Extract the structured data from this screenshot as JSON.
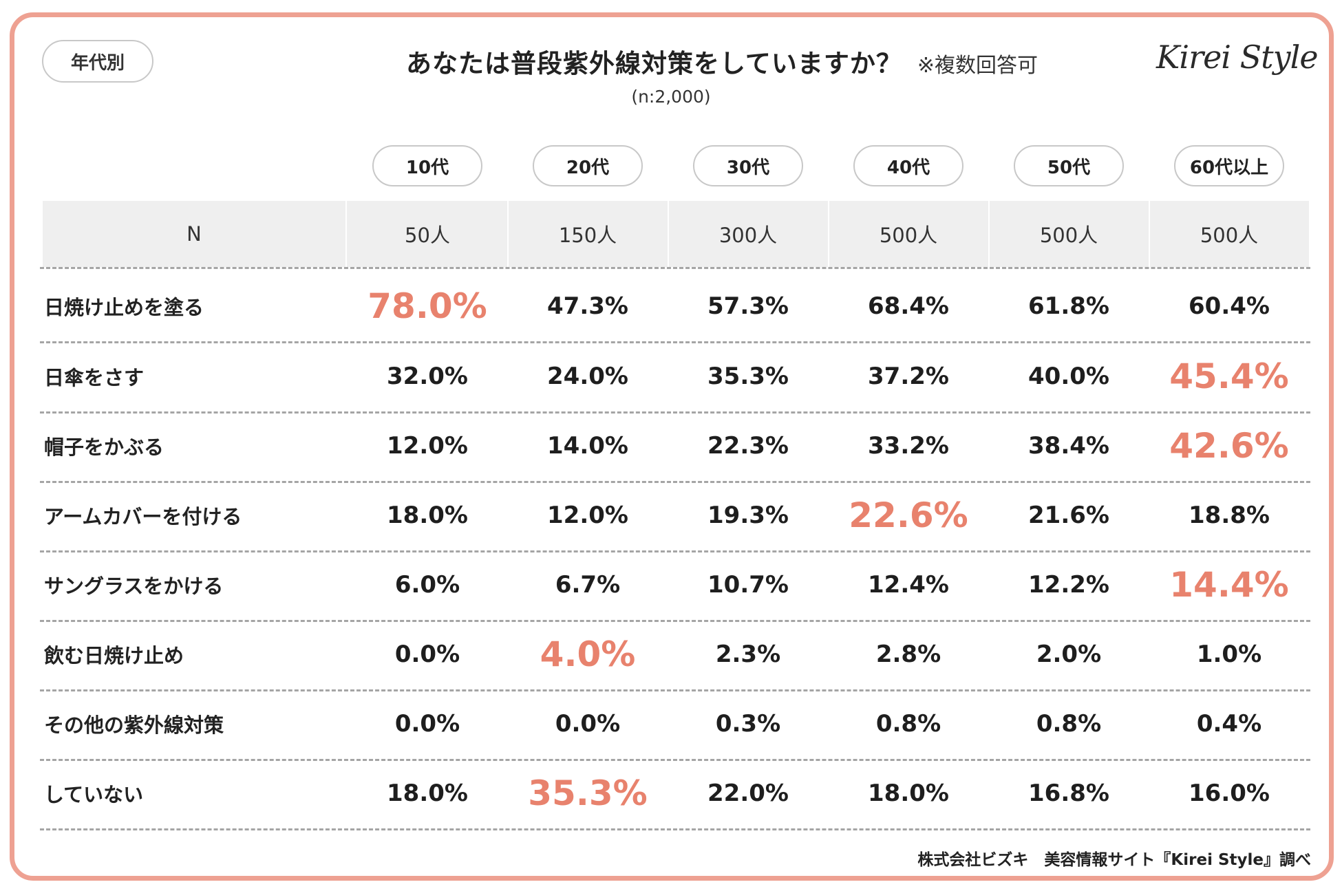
{
  "header": {
    "tag": "年代別",
    "title": "あなたは普段紫外線対策をしていますか？",
    "note": "※複数回答可",
    "subtitle": "(n:2,000)",
    "logo": "Kirei Style"
  },
  "colors": {
    "frame": "#eea192",
    "highlight": "#e8826d",
    "n_row_bg": "#efefef"
  },
  "chart_data": {
    "type": "table",
    "title": "あなたは普段紫外線対策をしていますか？",
    "row_header": "N",
    "columns": [
      "10代",
      "20代",
      "30代",
      "40代",
      "50代",
      "60代以上"
    ],
    "n_values": [
      "50人",
      "150人",
      "300人",
      "500人",
      "500人",
      "500人"
    ],
    "rows": [
      {
        "label": "日焼け止めを塗る",
        "values": [
          "78.0%",
          "47.3%",
          "57.3%",
          "68.4%",
          "61.8%",
          "60.4%"
        ],
        "highlight": 0
      },
      {
        "label": "日傘をさす",
        "values": [
          "32.0%",
          "24.0%",
          "35.3%",
          "37.2%",
          "40.0%",
          "45.4%"
        ],
        "highlight": 5
      },
      {
        "label": "帽子をかぶる",
        "values": [
          "12.0%",
          "14.0%",
          "22.3%",
          "33.2%",
          "38.4%",
          "42.6%"
        ],
        "highlight": 5
      },
      {
        "label": "アームカバーを付ける",
        "values": [
          "18.0%",
          "12.0%",
          "19.3%",
          "22.6%",
          "21.6%",
          "18.8%"
        ],
        "highlight": 3
      },
      {
        "label": "サングラスをかける",
        "values": [
          "6.0%",
          "6.7%",
          "10.7%",
          "12.4%",
          "12.2%",
          "14.4%"
        ],
        "highlight": 5
      },
      {
        "label": "飲む日焼け止め",
        "values": [
          "0.0%",
          "4.0%",
          "2.3%",
          "2.8%",
          "2.0%",
          "1.0%"
        ],
        "highlight": 1
      },
      {
        "label": "その他の紫外線対策",
        "values": [
          "0.0%",
          "0.0%",
          "0.3%",
          "0.8%",
          "0.8%",
          "0.4%"
        ],
        "highlight": -1
      },
      {
        "label": "していない",
        "values": [
          "18.0%",
          "35.3%",
          "22.0%",
          "18.0%",
          "16.8%",
          "16.0%"
        ],
        "highlight": 1
      }
    ]
  },
  "footer": {
    "source": "株式会社ビズキ　美容情報サイト『Kirei Style』調べ"
  }
}
